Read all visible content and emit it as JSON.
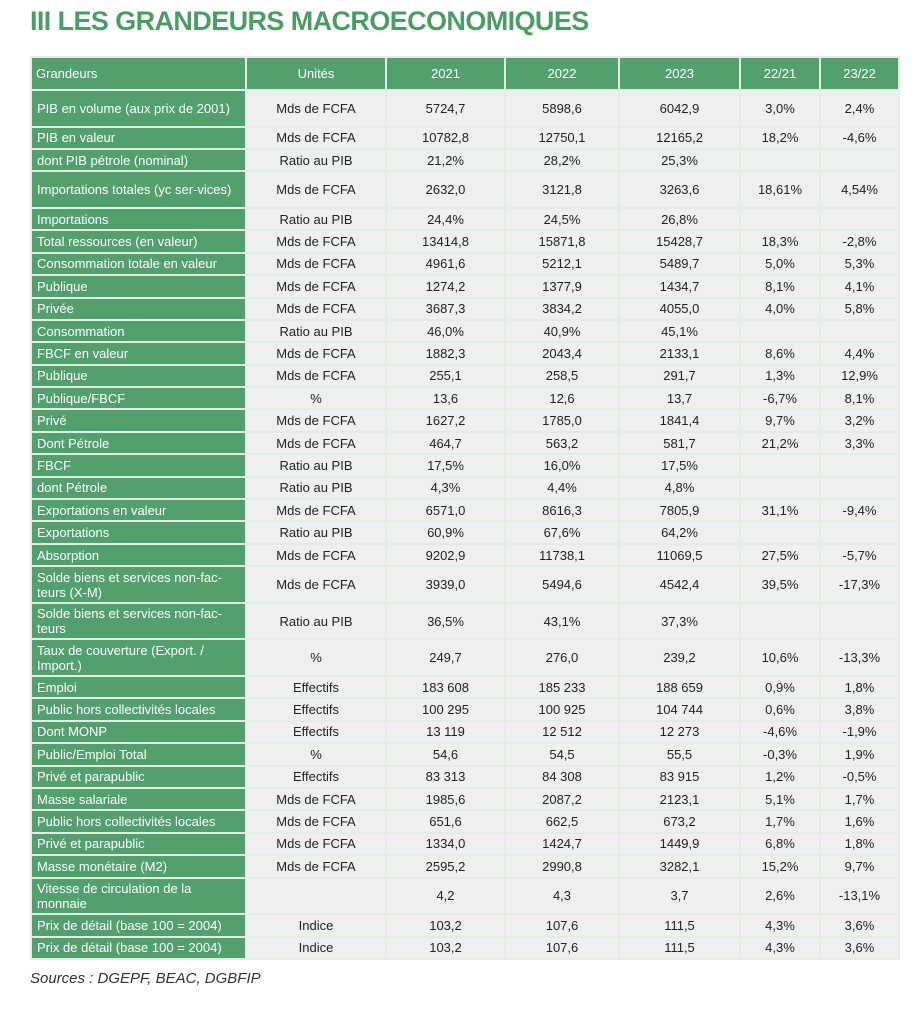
{
  "title": "III LES GRANDEURS MACROECONOMIQUES",
  "colors": {
    "accent_green": "#52a06d",
    "title_green": "#4a9e63",
    "cell_bg": "#efefef"
  },
  "table": {
    "headers": [
      "Grandeurs",
      "Unités",
      "2021",
      "2022",
      "2023",
      "22/21",
      "23/22"
    ],
    "rows": [
      [
        "PIB en volume (aux prix de 2001)",
        "Mds de FCFA",
        "5724,7",
        "5898,6",
        "6042,9",
        "3,0%",
        "2,4%"
      ],
      [
        "PIB en valeur",
        "Mds de FCFA",
        "10782,8",
        "12750,1",
        "12165,2",
        "18,2%",
        "-4,6%"
      ],
      [
        "dont PIB pétrole (nominal)",
        "Ratio au PIB",
        "21,2%",
        "28,2%",
        "25,3%",
        "",
        ""
      ],
      [
        "Importations totales (yc ser-vices)",
        "Mds de FCFA",
        "2632,0",
        "3121,8",
        "3263,6",
        "18,61%",
        "4,54%"
      ],
      [
        "Importations",
        "Ratio au PIB",
        "24,4%",
        "24,5%",
        "26,8%",
        "",
        ""
      ],
      [
        "Total ressources (en valeur)",
        "Mds de FCFA",
        "13414,8",
        "15871,8",
        "15428,7",
        "18,3%",
        "-2,8%"
      ],
      [
        "Consommation totale en valeur",
        "Mds de FCFA",
        "4961,6",
        "5212,1",
        "5489,7",
        "5,0%",
        "5,3%"
      ],
      [
        "Publique",
        "Mds de FCFA",
        "1274,2",
        "1377,9",
        "1434,7",
        "8,1%",
        "4,1%"
      ],
      [
        "Privée",
        "Mds de FCFA",
        "3687,3",
        "3834,2",
        "4055,0",
        "4,0%",
        "5,8%"
      ],
      [
        "Consommation",
        "Ratio au PIB",
        "46,0%",
        "40,9%",
        "45,1%",
        "",
        ""
      ],
      [
        "FBCF en valeur",
        "Mds de FCFA",
        "1882,3",
        "2043,4",
        "2133,1",
        "8,6%",
        "4,4%"
      ],
      [
        "Publique",
        "Mds de FCFA",
        "255,1",
        "258,5",
        "291,7",
        "1,3%",
        "12,9%"
      ],
      [
        "Publique/FBCF",
        "%",
        "13,6",
        "12,6",
        "13,7",
        "-6,7%",
        "8,1%"
      ],
      [
        "Privé",
        "Mds de FCFA",
        "1627,2",
        "1785,0",
        "1841,4",
        "9,7%",
        "3,2%"
      ],
      [
        "Dont Pétrole",
        "Mds de FCFA",
        "464,7",
        "563,2",
        "581,7",
        "21,2%",
        "3,3%"
      ],
      [
        "FBCF",
        "Ratio au PIB",
        "17,5%",
        "16,0%",
        "17,5%",
        "",
        ""
      ],
      [
        "dont Pétrole",
        "Ratio au PIB",
        "4,3%",
        "4,4%",
        "4,8%",
        "",
        ""
      ],
      [
        "Exportations en valeur",
        "Mds de FCFA",
        "6571,0",
        "8616,3",
        "7805,9",
        "31,1%",
        "-9,4%"
      ],
      [
        "Exportations",
        "Ratio au PIB",
        "60,9%",
        "67,6%",
        "64,2%",
        "",
        ""
      ],
      [
        "Absorption",
        "Mds de FCFA",
        "9202,9",
        "11738,1",
        "11069,5",
        "27,5%",
        "-5,7%"
      ],
      [
        "Solde biens et services non-fac-teurs (X-M)",
        "Mds de FCFA",
        "3939,0",
        "5494,6",
        "4542,4",
        "39,5%",
        "-17,3%"
      ],
      [
        "Solde biens et services non-fac-teurs",
        "Ratio au PIB",
        "36,5%",
        "43,1%",
        "37,3%",
        "",
        ""
      ],
      [
        "Taux de couverture (Export. / Import.)",
        "%",
        "249,7",
        "276,0",
        "239,2",
        "10,6%",
        "-13,3%"
      ],
      [
        "Emploi",
        "Effectifs",
        "183 608",
        "185 233",
        "188 659",
        "0,9%",
        "1,8%"
      ],
      [
        "Public hors collectivités locales",
        "Effectifs",
        "100 295",
        "100 925",
        "104 744",
        "0,6%",
        "3,8%"
      ],
      [
        "Dont MONP",
        "Effectifs",
        "13 119",
        "12 512",
        "12 273",
        "-4,6%",
        "-1,9%"
      ],
      [
        "Public/Emploi Total",
        "%",
        "54,6",
        "54,5",
        "55,5",
        "-0,3%",
        "1,9%"
      ],
      [
        "Privé et parapublic",
        "Effectifs",
        "83 313",
        "84 308",
        "83 915",
        "1,2%",
        "-0,5%"
      ],
      [
        "Masse salariale",
        "Mds de FCFA",
        "1985,6",
        "2087,2",
        "2123,1",
        "5,1%",
        "1,7%"
      ],
      [
        "Public hors collectivités locales",
        "Mds de FCFA",
        "651,6",
        "662,5",
        "673,2",
        "1,7%",
        "1,6%"
      ],
      [
        "Privé et parapublic",
        "Mds de FCFA",
        "1334,0",
        "1424,7",
        "1449,9",
        "6,8%",
        "1,8%"
      ],
      [
        "Masse monétaire (M2)",
        "Mds de FCFA",
        "2595,2",
        "2990,8",
        "3282,1",
        "15,2%",
        "9,7%"
      ],
      [
        "Vitesse de circulation de la monnaie",
        "",
        "4,2",
        "4,3",
        "3,7",
        "2,6%",
        "-13,1%"
      ],
      [
        "Prix de détail (base 100 = 2004)",
        "Indice",
        "103,2",
        "107,6",
        "111,5",
        "4,3%",
        "3,6%"
      ],
      [
        "Prix de détail (base 100 = 2004)",
        "Indice",
        "103,2",
        "107,6",
        "111,5",
        "4,3%",
        "3,6%"
      ]
    ]
  },
  "sources": "Sources : DGEPF, BEAC, DGBFIP"
}
